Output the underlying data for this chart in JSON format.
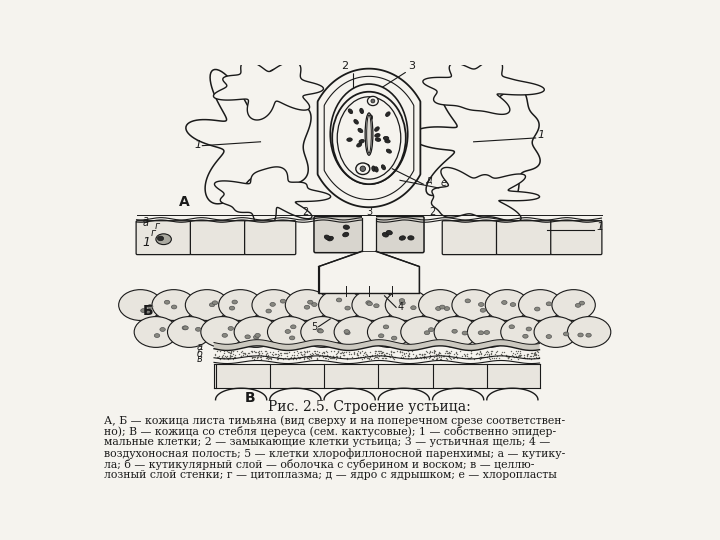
{
  "title": "Рис. 2.5. Строение устьица:",
  "caption_lines": [
    "А, Б — кожица листа тимьяна (вид сверху и на поперечном срезе соответствен-",
    "но); В — кожица со стебля цереуса (сем. кактусовые); 1 — собственно эпидер-",
    "мальные клетки; 2 — замыкающие клетки устьица; 3 — устьичная щель; 4 —",
    "воздухоносная полость; 5 — клетки хлорофиллоносной паренхимы; а — кутику-",
    "ла; б — кутикулярный слой — оболочка с суберином и воском; в — целлю-",
    "лозный слой стенки; г — цитоплазма; д — ядро с ядрышком; е — хлоропласты"
  ],
  "bg_color": "#f5f3ee",
  "line_color": "#1a1a1a",
  "cell_fill": "#e8e5de",
  "guard_fill": "#d8d5ce",
  "white_fill": "#f5f3ee",
  "dark_fill": "#2a2a2a",
  "stipple_fill": "#c8c5be",
  "text_color": "#1a1a1a"
}
